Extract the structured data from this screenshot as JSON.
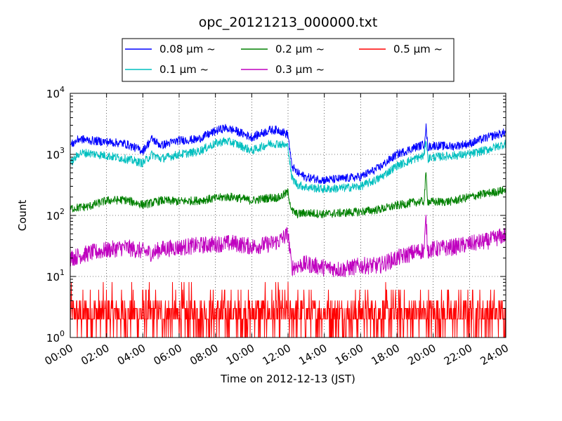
{
  "chart_data": {
    "type": "line",
    "title": "opc_20121213_000000.txt",
    "xlabel": "Time on 2012-12-13 (JST)",
    "ylabel": "Count",
    "x_ticks": [
      "00:00",
      "02:00",
      "04:00",
      "06:00",
      "08:00",
      "10:00",
      "12:00",
      "14:00",
      "16:00",
      "18:00",
      "20:00",
      "22:00",
      "24:00"
    ],
    "x_range_hours": [
      0,
      24
    ],
    "y_scale": "log",
    "ylim": [
      1,
      10000
    ],
    "y_ticks": [
      {
        "base": "10",
        "exp": "0"
      },
      {
        "base": "10",
        "exp": "1"
      },
      {
        "base": "10",
        "exp": "2"
      },
      {
        "base": "10",
        "exp": "3"
      },
      {
        "base": "10",
        "exp": "4"
      }
    ],
    "grid": true,
    "legend_position": "top-center",
    "series": [
      {
        "name": "0.08 μm ~",
        "color": "#0000ff",
        "noise": 0.07,
        "x": [
          0,
          0.5,
          1,
          2,
          3,
          4,
          4.5,
          5,
          6,
          7,
          8,
          8.5,
          9,
          10,
          11,
          11.5,
          12,
          12.2,
          12.5,
          13,
          14,
          15,
          16,
          17,
          18,
          19,
          19.5,
          19.6,
          19.7,
          20,
          21,
          22,
          23,
          24
        ],
        "y": [
          1400,
          1800,
          1700,
          1600,
          1500,
          1150,
          1800,
          1400,
          1700,
          1750,
          2400,
          2700,
          2500,
          1900,
          2500,
          2500,
          2100,
          650,
          500,
          420,
          380,
          400,
          430,
          600,
          1000,
          1300,
          1450,
          2900,
          1300,
          1400,
          1350,
          1500,
          1900,
          2300
        ]
      },
      {
        "name": "0.1 μm ~",
        "color": "#00bfbf",
        "noise": 0.07,
        "x": [
          0,
          0.5,
          1,
          2,
          3,
          4,
          4.5,
          5,
          6,
          7,
          8,
          8.5,
          9,
          10,
          11,
          11.5,
          12,
          12.2,
          12.5,
          13,
          14,
          15,
          16,
          17,
          18,
          19,
          19.5,
          19.6,
          19.7,
          20,
          21,
          22,
          23,
          24
        ],
        "y": [
          700,
          1050,
          1050,
          950,
          850,
          720,
          1000,
          850,
          1000,
          1100,
          1500,
          1650,
          1550,
          1150,
          1500,
          1500,
          1350,
          420,
          320,
          290,
          270,
          280,
          300,
          400,
          650,
          850,
          950,
          1900,
          850,
          900,
          950,
          1000,
          1200,
          1500
        ]
      },
      {
        "name": "0.2 μm ~",
        "color": "#008000",
        "noise": 0.07,
        "x": [
          0,
          1,
          2,
          3,
          4,
          4.5,
          5,
          6,
          7,
          8,
          8.5,
          9,
          10,
          11,
          11.5,
          12,
          12.2,
          12.5,
          13,
          14,
          15,
          16,
          17,
          18,
          19,
          19.5,
          19.6,
          19.7,
          20,
          21,
          22,
          23,
          24
        ],
        "y": [
          130,
          140,
          175,
          180,
          150,
          160,
          175,
          170,
          175,
          190,
          200,
          200,
          175,
          195,
          195,
          240,
          120,
          105,
          110,
          105,
          110,
          115,
          125,
          145,
          165,
          170,
          500,
          170,
          165,
          170,
          200,
          230,
          260
        ]
      },
      {
        "name": "0.3 μm ~",
        "color": "#bf00bf",
        "noise": 0.14,
        "x": [
          0,
          1,
          2,
          3,
          4,
          4.5,
          5,
          6,
          7,
          8,
          9,
          10,
          11,
          11.5,
          12,
          12.2,
          12.5,
          13,
          14,
          15,
          16,
          17,
          18,
          19,
          19.5,
          19.6,
          19.7,
          20,
          21,
          22,
          23,
          24
        ],
        "y": [
          20,
          24,
          27,
          30,
          26,
          24,
          28,
          30,
          32,
          34,
          35,
          31,
          34,
          38,
          50,
          14,
          15,
          16,
          14,
          13,
          15,
          15,
          20,
          25,
          27,
          90,
          27,
          28,
          30,
          34,
          38,
          48
        ]
      },
      {
        "name": "0.5 μm ~",
        "color": "#ff0000",
        "noise": 0,
        "x": [
          0,
          24
        ],
        "y": [
          3,
          3
        ]
      }
    ]
  }
}
